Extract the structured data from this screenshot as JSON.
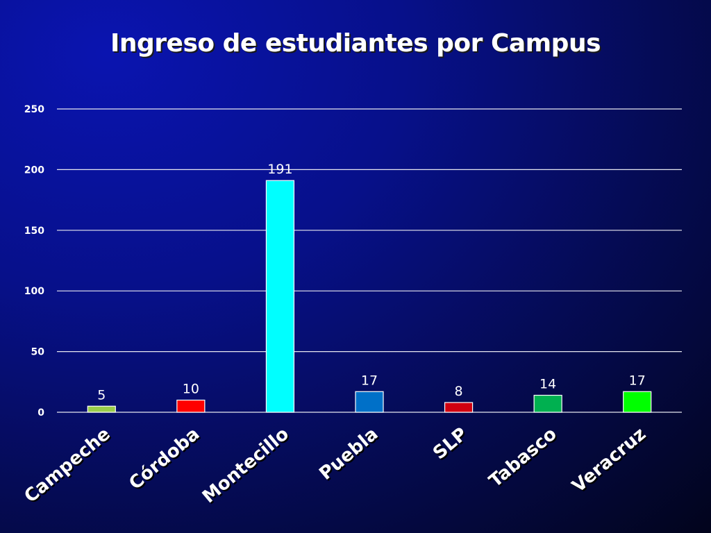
{
  "chart_data": {
    "type": "bar",
    "title": "Ingreso de estudiantes por Campus",
    "xlabel": "",
    "ylabel": "",
    "categories": [
      "Campeche",
      "Córdoba",
      "Montecillo",
      "Puebla",
      "SLP",
      "Tabasco",
      "Veracruz"
    ],
    "values": [
      5,
      10,
      191,
      17,
      8,
      14,
      17
    ],
    "bar_colors": [
      "#9acd4a",
      "#ff0000",
      "#00ffff",
      "#0070c8",
      "#d00010",
      "#00b050",
      "#00ff00"
    ],
    "ylim": [
      0,
      250
    ],
    "yticks": [
      0,
      50,
      100,
      150,
      200,
      250
    ],
    "grid": true,
    "legend": "none"
  }
}
